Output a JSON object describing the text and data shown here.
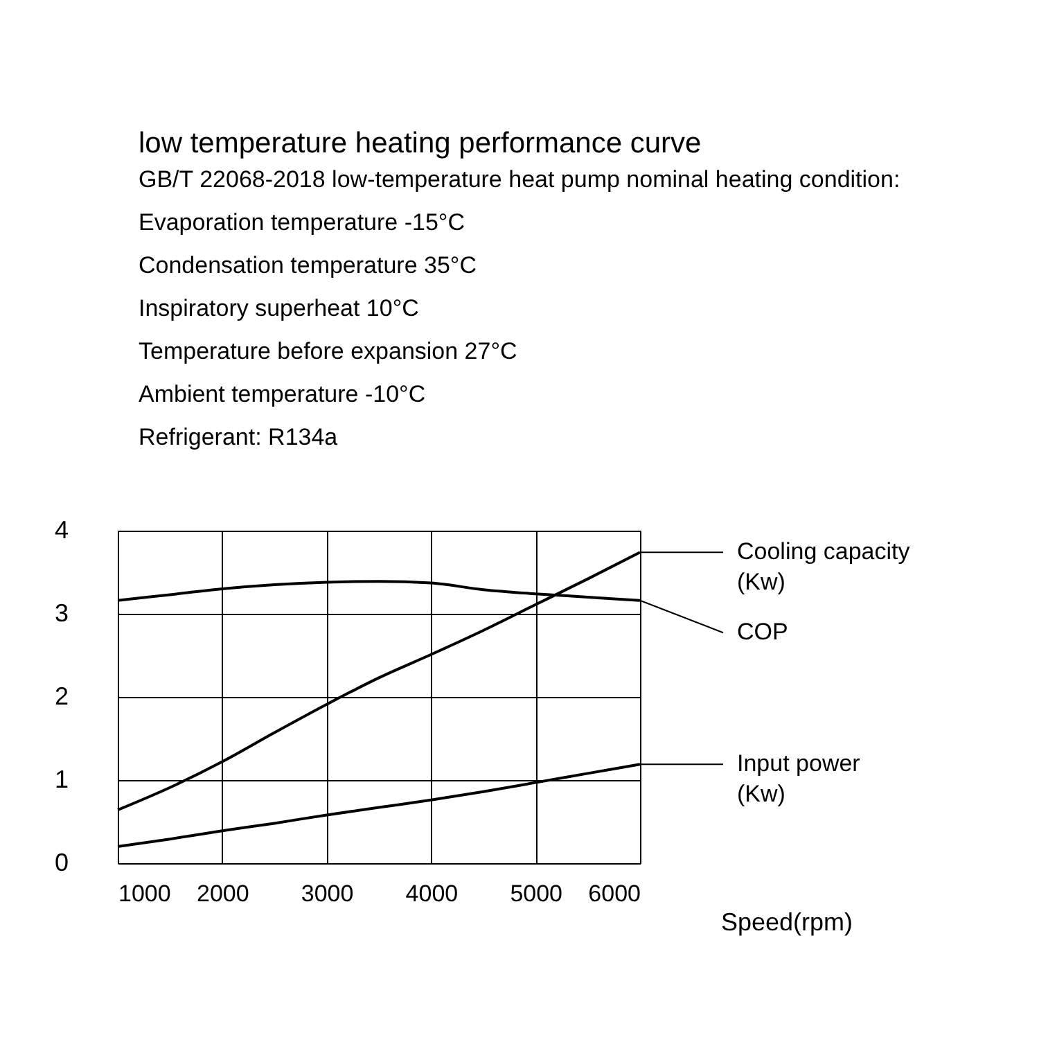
{
  "chart_data": {
    "type": "line",
    "title": "low temperature heating performance curve",
    "subtitle": "GB/T 22068-2018 low-temperature heat pump nominal heating condition:\nEvaporation temperature -15°C\nCondensation  temperature 35°C\nInspiratory superheat 10°C\nTemperature before expansion 27°C\nAmbient  temperature -10°C\nRefrigerant: R134a",
    "xlabel": "Speed(rpm)",
    "x": [
      1000,
      1500,
      2000,
      2500,
      3000,
      3500,
      4000,
      4500,
      5000,
      5500,
      6000
    ],
    "series": [
      {
        "name": "Cooling capacity(Kw)",
        "color": "#000000",
        "values": [
          0.64,
          0.91,
          1.22,
          1.57,
          1.91,
          2.23,
          2.51,
          2.8,
          3.11,
          3.42,
          3.74
        ]
      },
      {
        "name": "COP",
        "color": "#000000",
        "values": [
          3.16,
          3.23,
          3.3,
          3.35,
          3.38,
          3.39,
          3.37,
          3.29,
          3.24,
          3.2,
          3.16
        ]
      },
      {
        "name": "Input power(Kw)",
        "color": "#000000",
        "values": [
          0.2,
          0.29,
          0.39,
          0.48,
          0.58,
          0.67,
          0.76,
          0.86,
          0.97,
          1.08,
          1.19
        ]
      }
    ],
    "xlim": [
      1000,
      6000
    ],
    "xticks": [
      1000,
      2000,
      3000,
      4000,
      5000,
      6000
    ],
    "ylim": [
      0,
      4
    ],
    "yticks": [
      0,
      1,
      2,
      3,
      4
    ],
    "grid": true,
    "legend": "right",
    "marker": "none",
    "line_style": "solid"
  }
}
